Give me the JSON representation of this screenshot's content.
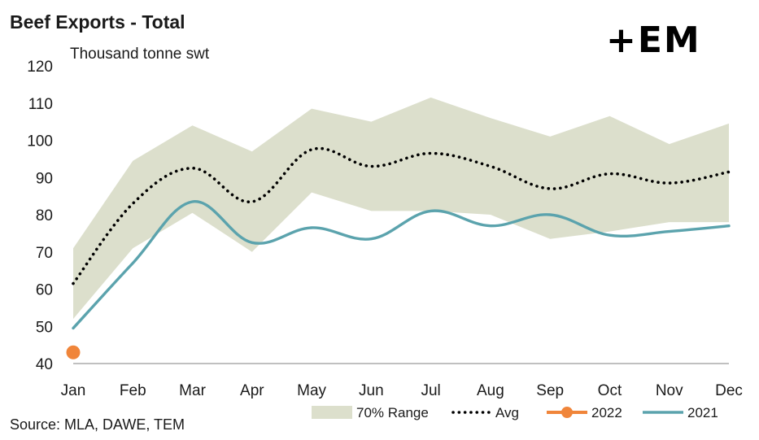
{
  "chart_data": {
    "type": "line",
    "title": "Beef Exports - Total",
    "ylabel": "Thousand tonne swt",
    "source": "Source: MLA, DAWE, TEM",
    "logo_text": "+EM",
    "categories": [
      "Jan",
      "Feb",
      "Mar",
      "Apr",
      "May",
      "Jun",
      "Jul",
      "Aug",
      "Sep",
      "Oct",
      "Nov",
      "Dec"
    ],
    "ylim": [
      40,
      120
    ],
    "yticks": [
      40,
      50,
      60,
      70,
      80,
      90,
      100,
      110,
      120
    ],
    "grid": false,
    "legend_position": "bottom",
    "range": {
      "name": "70% Range",
      "upper": [
        71,
        94.5,
        104,
        97,
        108.5,
        105,
        111.5,
        106,
        101,
        106.5,
        99,
        104.5
      ],
      "lower": [
        52,
        71,
        80.5,
        70,
        86,
        81,
        81,
        80,
        73.5,
        75.5,
        78,
        78
      ],
      "color": "#dcdfcc"
    },
    "series": [
      {
        "name": "Avg",
        "values": [
          61.5,
          83,
          92.5,
          83.5,
          97.5,
          93,
          96.5,
          93,
          87,
          91,
          88.5,
          91.5
        ],
        "color": "#000000",
        "style": "dotted"
      },
      {
        "name": "2022",
        "values": [
          43,
          null,
          null,
          null,
          null,
          null,
          null,
          null,
          null,
          null,
          null,
          null
        ],
        "color": "#f0853a",
        "style": "marker"
      },
      {
        "name": "2021",
        "values": [
          49.5,
          67,
          83.5,
          72.5,
          76.5,
          73.5,
          81,
          77,
          80,
          74.5,
          75.5,
          77
        ],
        "color": "#5ba3ad",
        "style": "solid"
      }
    ]
  }
}
